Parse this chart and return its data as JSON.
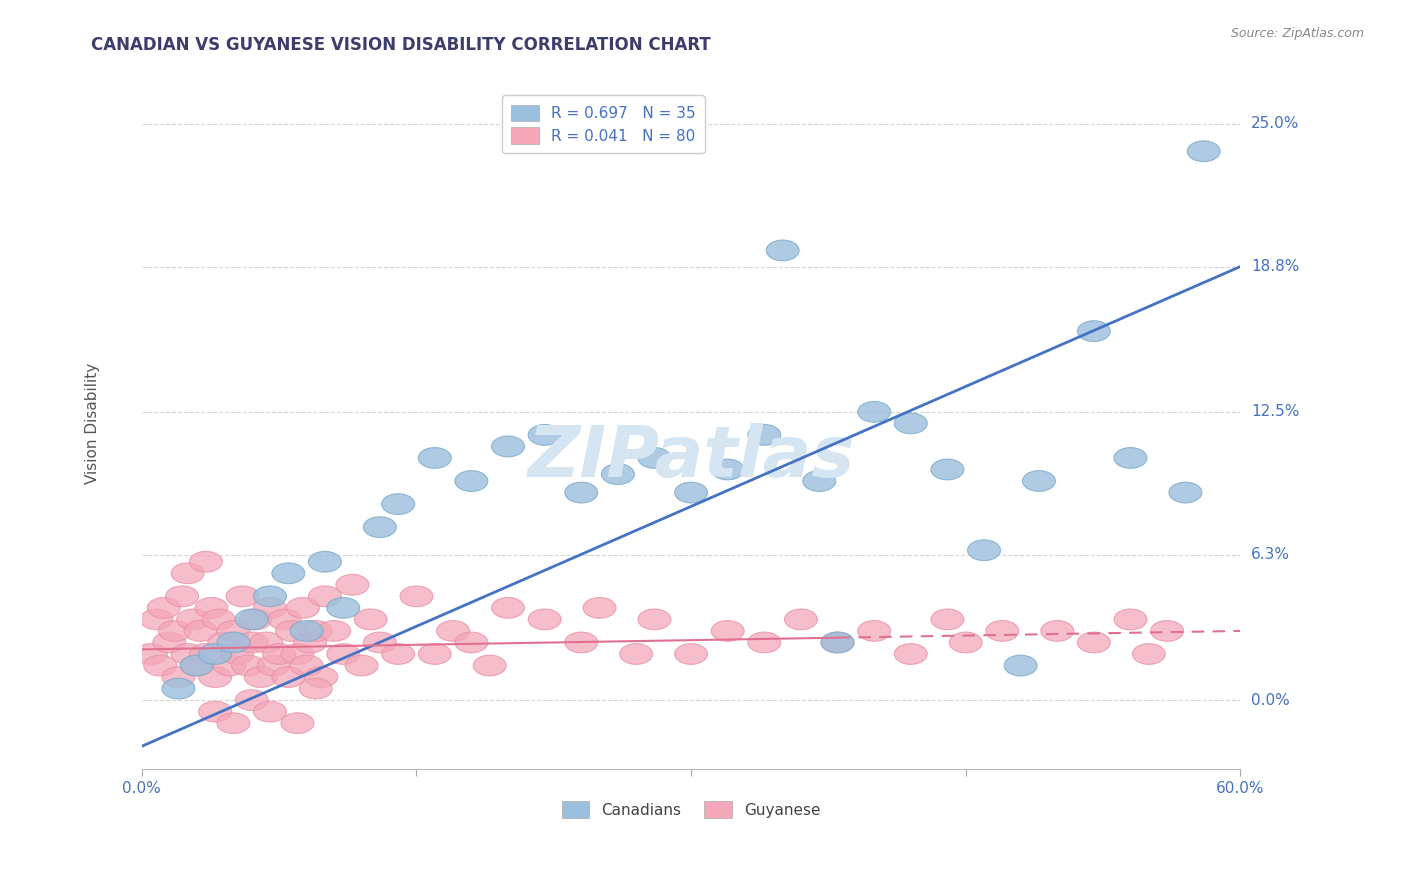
{
  "title": "CANADIAN VS GUYANESE VISION DISABILITY CORRELATION CHART",
  "source": "Source: ZipAtlas.com",
  "ylabel": "Vision Disability",
  "ytick_labels": [
    "0.0%",
    "6.3%",
    "12.5%",
    "18.8%",
    "25.0%"
  ],
  "ytick_values": [
    0.0,
    6.3,
    12.5,
    18.8,
    25.0
  ],
  "xlim": [
    0.0,
    60.0
  ],
  "ylim": [
    -3.0,
    27.0
  ],
  "title_color": "#3d3d6b",
  "axis_color": "#4472C4",
  "canadians_color": "#9BBFDE",
  "canadians_edge_color": "#7AAAC8",
  "guyanese_color": "#F4A7B9",
  "guyanese_edge_color": "#E88FA5",
  "canadians_line_color": "#4472C4",
  "guyanese_line_color": "#E07090",
  "grid_color": "#CCCCCC",
  "legend_label_canadian": "R = 0.697   N = 35",
  "legend_label_guyanese": "R = 0.041   N = 80",
  "legend_label_bottom_canadian": "Canadians",
  "legend_label_bottom_guyanese": "Guyanese",
  "watermark_text": "ZIPatlas",
  "watermark_color": "#D5E5F2",
  "background_color": "#FFFFFF",
  "canadians_x": [
    2.0,
    3.0,
    4.0,
    5.0,
    6.0,
    7.0,
    8.0,
    9.0,
    10.0,
    11.0,
    13.0,
    14.0,
    16.0,
    18.0,
    20.0,
    22.0,
    24.0,
    26.0,
    28.0,
    30.0,
    32.0,
    34.0,
    35.0,
    37.0,
    38.0,
    40.0,
    42.0,
    44.0,
    46.0,
    48.0,
    49.0,
    52.0,
    54.0,
    57.0,
    58.0
  ],
  "canadians_y": [
    0.5,
    1.5,
    2.0,
    2.5,
    3.5,
    4.5,
    5.5,
    3.0,
    6.0,
    4.0,
    7.5,
    8.5,
    10.5,
    9.5,
    11.0,
    11.5,
    9.0,
    9.8,
    10.5,
    9.0,
    10.0,
    11.5,
    19.5,
    9.5,
    2.5,
    12.5,
    12.0,
    10.0,
    6.5,
    1.5,
    9.5,
    16.0,
    10.5,
    9.0,
    23.8
  ],
  "guyanese_x": [
    0.5,
    0.8,
    1.0,
    1.2,
    1.5,
    1.8,
    2.0,
    2.2,
    2.5,
    2.8,
    3.0,
    3.2,
    3.5,
    3.8,
    4.0,
    4.2,
    4.5,
    4.8,
    5.0,
    5.2,
    5.5,
    5.8,
    6.0,
    6.2,
    6.5,
    6.8,
    7.0,
    7.2,
    7.5,
    7.8,
    8.0,
    8.2,
    8.5,
    8.8,
    9.0,
    9.2,
    9.5,
    9.8,
    10.0,
    10.5,
    11.0,
    11.5,
    12.0,
    12.5,
    13.0,
    14.0,
    15.0,
    16.0,
    17.0,
    18.0,
    19.0,
    20.0,
    22.0,
    24.0,
    25.0,
    27.0,
    28.0,
    30.0,
    32.0,
    34.0,
    36.0,
    38.0,
    40.0,
    42.0,
    44.0,
    45.0,
    47.0,
    50.0,
    52.0,
    54.0,
    55.0,
    56.0,
    4.0,
    5.0,
    6.0,
    7.0,
    2.5,
    3.5,
    8.5,
    9.5
  ],
  "guyanese_y": [
    2.0,
    3.5,
    1.5,
    4.0,
    2.5,
    3.0,
    1.0,
    4.5,
    2.0,
    3.5,
    1.5,
    3.0,
    2.0,
    4.0,
    1.0,
    3.5,
    2.5,
    1.5,
    3.0,
    2.0,
    4.5,
    1.5,
    2.5,
    3.5,
    1.0,
    2.5,
    4.0,
    1.5,
    2.0,
    3.5,
    1.0,
    3.0,
    2.0,
    4.0,
    1.5,
    2.5,
    3.0,
    1.0,
    4.5,
    3.0,
    2.0,
    5.0,
    1.5,
    3.5,
    2.5,
    2.0,
    4.5,
    2.0,
    3.0,
    2.5,
    1.5,
    4.0,
    3.5,
    2.5,
    4.0,
    2.0,
    3.5,
    2.0,
    3.0,
    2.5,
    3.5,
    2.5,
    3.0,
    2.0,
    3.5,
    2.5,
    3.0,
    3.0,
    2.5,
    3.5,
    2.0,
    3.0,
    -0.5,
    -1.0,
    0.0,
    -0.5,
    5.5,
    6.0,
    -1.0,
    0.5
  ],
  "canadian_line_x0": 0.0,
  "canadian_line_y0": -2.0,
  "canadian_line_x1": 60.0,
  "canadian_line_y1": 18.8,
  "guyanese_line_x0": 0.0,
  "guyanese_line_y0": 2.2,
  "guyanese_line_x1": 60.0,
  "guyanese_line_y1": 3.0,
  "guyanese_solid_end": 38.0,
  "xtick_positions": [
    0,
    15,
    30,
    45,
    60
  ],
  "xtick_labels_bottom": [
    "0.0%",
    "",
    "",
    "",
    "60.0%"
  ]
}
